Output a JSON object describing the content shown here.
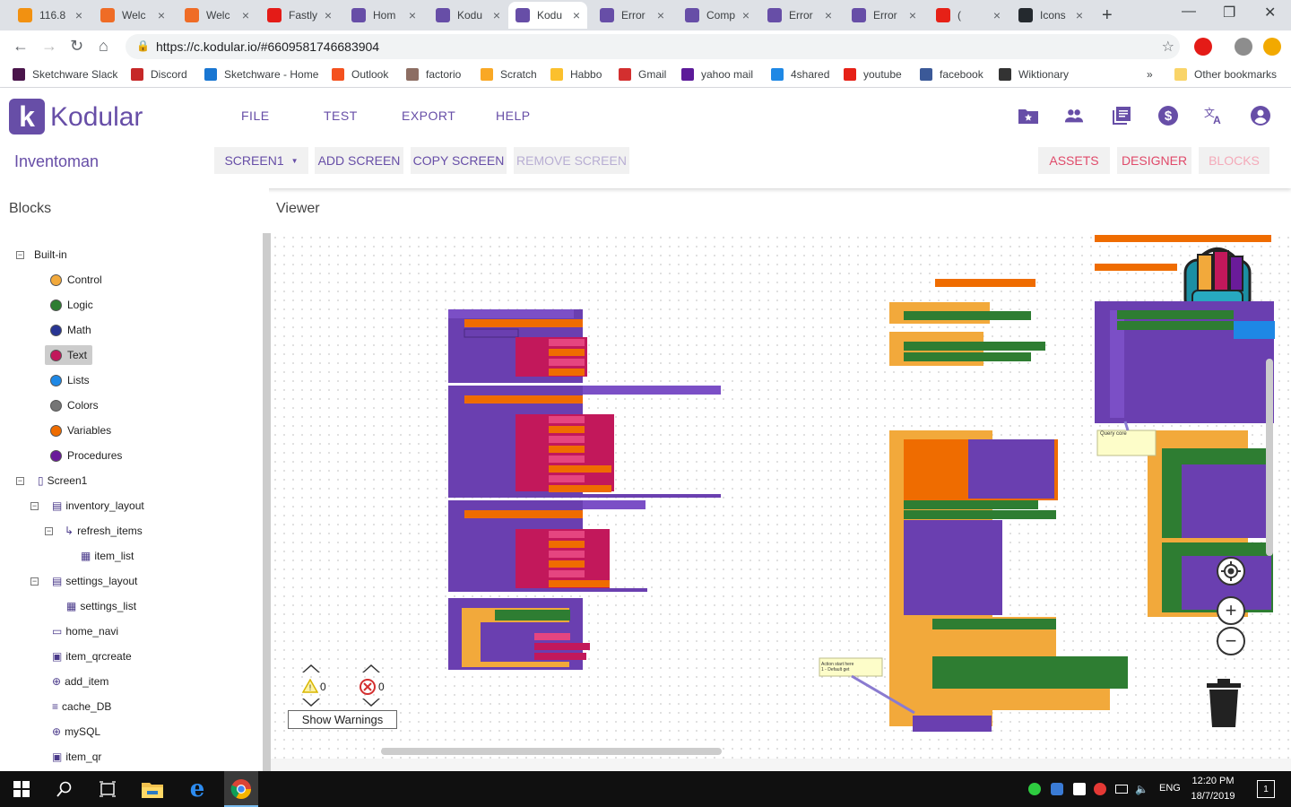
{
  "browser": {
    "tabs": [
      {
        "label": "116.8",
        "icon": "pma-icon",
        "color": "#f29111"
      },
      {
        "label": "Welc",
        "icon": "welcome-icon",
        "color": "#ef6c26"
      },
      {
        "label": "Welc",
        "icon": "welcome-icon",
        "color": "#ef6c26"
      },
      {
        "label": "Fastly",
        "icon": "opera-icon",
        "color": "#e41b17"
      },
      {
        "label": "Hom",
        "icon": "kodular-icon",
        "color": "#674ea7"
      },
      {
        "label": "Kodu",
        "icon": "kodular-icon",
        "color": "#674ea7"
      },
      {
        "label": "Kodu",
        "icon": "kodular-icon",
        "color": "#674ea7"
      },
      {
        "label": "Error",
        "icon": "kodular-icon",
        "color": "#674ea7"
      },
      {
        "label": "Comp",
        "icon": "kodular-icon",
        "color": "#674ea7"
      },
      {
        "label": "Error",
        "icon": "kodular-icon",
        "color": "#674ea7"
      },
      {
        "label": "Error",
        "icon": "kodular-icon",
        "color": "#674ea7"
      },
      {
        "label": "(",
        "icon": "youtube-icon",
        "color": "#e62117"
      },
      {
        "label": "Icons",
        "icon": "github-icon",
        "color": "#24292e"
      }
    ],
    "active_tab": 6,
    "url": "https://c.kodular.io/#6609581746683904",
    "bookmarks": [
      {
        "label": "Sketchware Slack",
        "color": "#4a154b"
      },
      {
        "label": "Discord",
        "color": "#c62828"
      },
      {
        "label": "Sketchware - Home",
        "color": "#1976d2"
      },
      {
        "label": "Outlook",
        "color": "#f4511e"
      },
      {
        "label": "factorio",
        "color": "#8d6e63"
      },
      {
        "label": "Scratch",
        "color": "#f9a825"
      },
      {
        "label": "Habbo",
        "color": "#fbc02d"
      },
      {
        "label": "Gmail",
        "color": "#d32f2f"
      },
      {
        "label": "yahoo mail",
        "color": "#5c1a99"
      },
      {
        "label": "4shared",
        "color": "#1e88e5"
      },
      {
        "label": "youtube",
        "color": "#e62117"
      },
      {
        "label": "facebook",
        "color": "#3b5998"
      },
      {
        "label": "Wiktionary",
        "color": "#333333"
      }
    ],
    "bookmarks_overflow": "»",
    "other_bookmarks": "Other bookmarks"
  },
  "app": {
    "brand": "Kodular",
    "brand_letter": "k",
    "menu": [
      "FILE",
      "TEST",
      "EXPORT",
      "HELP"
    ],
    "project_name": "Inventoman",
    "screen_select": "SCREEN1",
    "add_screen": "ADD SCREEN",
    "copy_screen": "COPY SCREEN",
    "remove_screen": "REMOVE SCREEN",
    "assets": "ASSETS",
    "designer": "DESIGNER",
    "blocks": "BLOCKS",
    "accent": "#674ea7",
    "view_accent": "#e04a6a"
  },
  "sidebar": {
    "title": "Blocks",
    "builtin_label": "Built-in",
    "builtin": [
      {
        "label": "Control",
        "color": "#f2a93b"
      },
      {
        "label": "Logic",
        "color": "#2e7d32"
      },
      {
        "label": "Math",
        "color": "#283593"
      },
      {
        "label": "Text",
        "color": "#c2185b"
      },
      {
        "label": "Lists",
        "color": "#1e88e5"
      },
      {
        "label": "Colors",
        "color": "#757575"
      },
      {
        "label": "Variables",
        "color": "#ef6c00"
      },
      {
        "label": "Procedures",
        "color": "#6a1b9a"
      }
    ],
    "components": [
      {
        "label": "Screen1",
        "depth": 0
      },
      {
        "label": "inventory_layout",
        "depth": 1
      },
      {
        "label": "refresh_items",
        "depth": 2
      },
      {
        "label": "item_list",
        "depth": 3
      },
      {
        "label": "settings_layout",
        "depth": 1
      },
      {
        "label": "settings_list",
        "depth": 2
      },
      {
        "label": "home_navi",
        "depth": 1
      },
      {
        "label": "item_qrcreate",
        "depth": 1
      },
      {
        "label": "add_item",
        "depth": 1
      },
      {
        "label": "cache_DB",
        "depth": 1
      },
      {
        "label": "mySQL",
        "depth": 1
      },
      {
        "label": "item_qr",
        "depth": 1
      }
    ]
  },
  "viewer": {
    "title": "Viewer",
    "warnings_count": "0",
    "errors_count": "0",
    "show_warnings": "Show Warnings",
    "zoom_in": "+",
    "zoom_out": "−",
    "comments": [
      "Query core",
      "Action start here\n1 - Default get"
    ]
  },
  "taskbar": {
    "lang": "ENG",
    "time": "12:20 PM",
    "date": "18/7/2019",
    "notifications": "1"
  }
}
